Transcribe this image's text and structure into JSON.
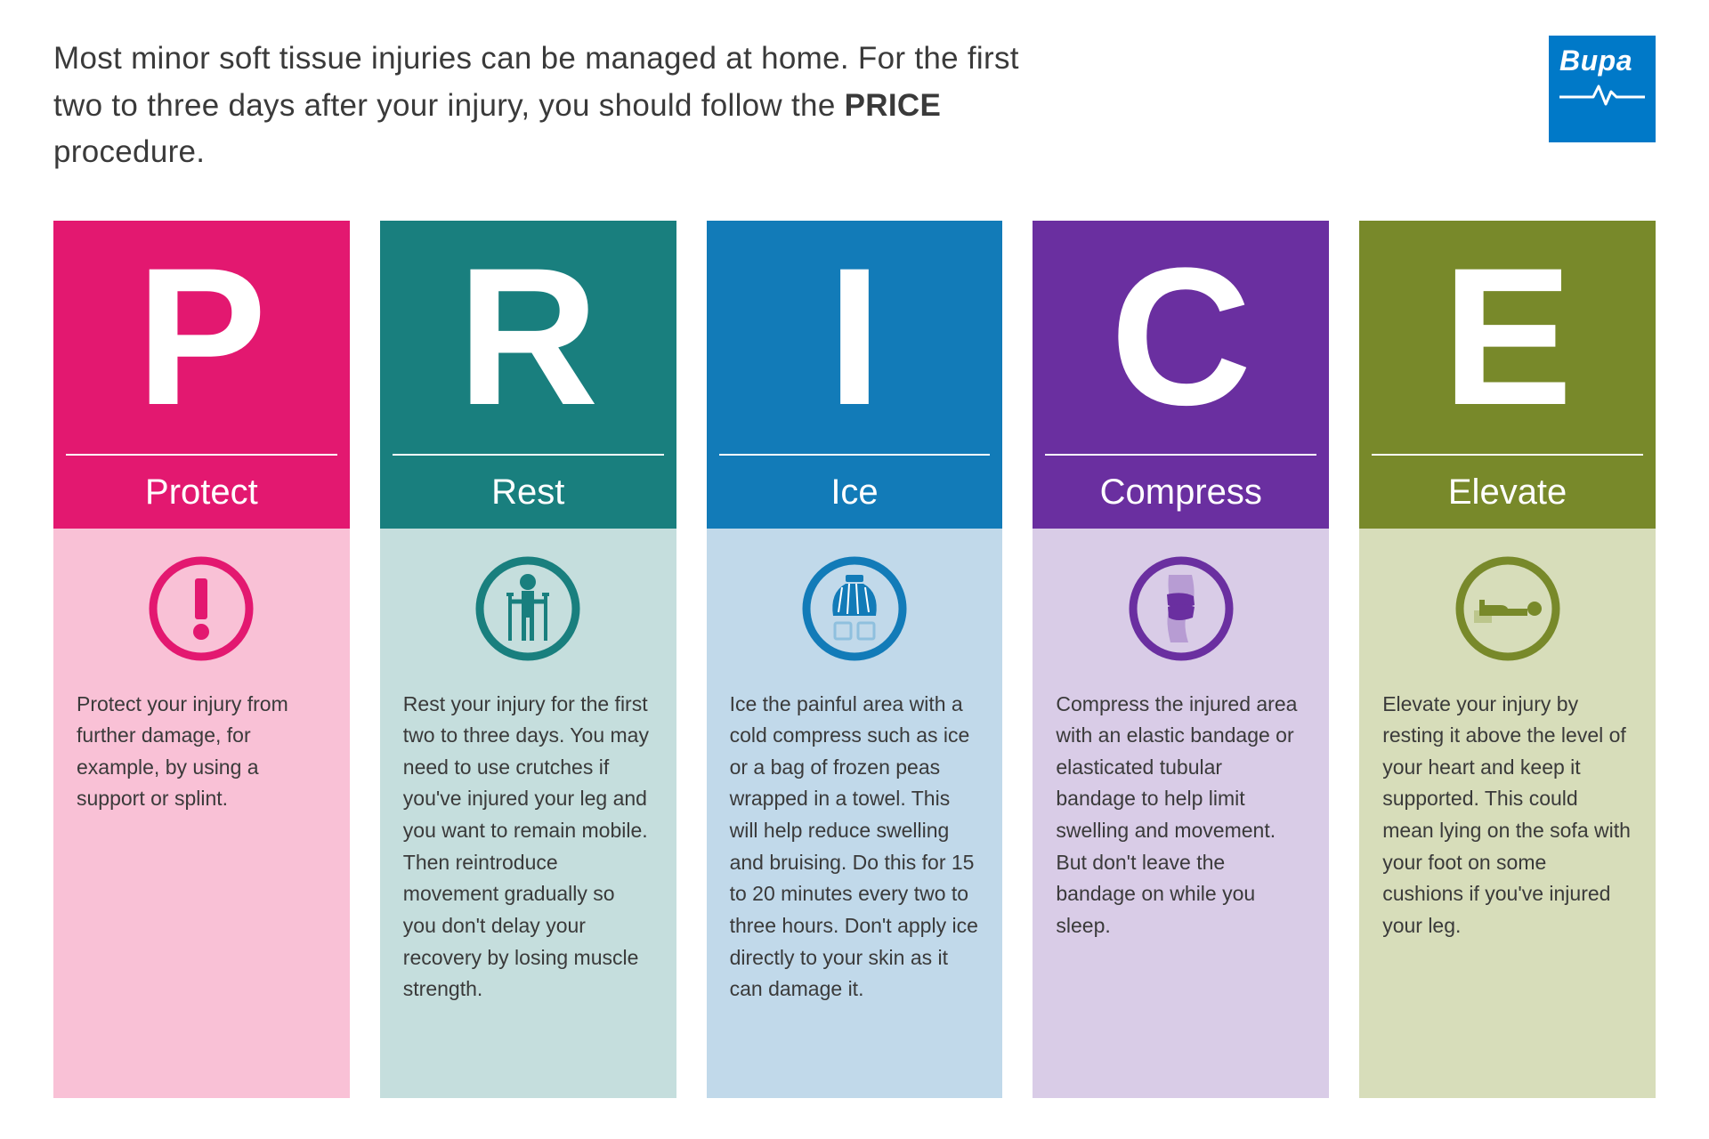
{
  "intro_pre": "Most minor soft tissue injuries can be managed at home. For the first two to three days after your injury, you should follow the ",
  "intro_bold": "PRICE",
  "intro_post": " procedure.",
  "logo_text": "Bupa",
  "colors": {
    "logo_bg": "#0079c8",
    "text": "#3a3a3a"
  },
  "columns": [
    {
      "letter": "P",
      "title": "Protect",
      "desc": "Protect your injury from further damage, for example, by using a support or splint.",
      "header_bg": "#e31870",
      "body_bg": "#f9c1d6",
      "icon": "exclaim",
      "icon_color": "#e31870"
    },
    {
      "letter": "R",
      "title": "Rest",
      "desc": "Rest your injury for the first two to three days. You may need to use crutches if you've injured your leg and you want to remain mobile. Then reintroduce movement gradually so you don't delay your recovery by losing muscle strength.",
      "header_bg": "#197f7e",
      "body_bg": "#c5dedd",
      "icon": "crutches",
      "icon_color": "#197f7e"
    },
    {
      "letter": "I",
      "title": "Ice",
      "desc": "Ice the painful area with a cold compress such as ice or a bag of frozen peas wrapped in a towel. This will help reduce swelling and bruising. Do this for 15 to 20 minutes every two to three hours. Don't apply ice directly to your skin as it can damage it.",
      "header_bg": "#127bb8",
      "body_bg": "#c1d9ea",
      "icon": "icebag",
      "icon_color": "#127bb8",
      "icon_light": "#8fc0de"
    },
    {
      "letter": "C",
      "title": "Compress",
      "desc": "Compress the injured area with an elastic bandage or elasticated tubular bandage to help limit swelling and movement. But don't leave the bandage on while you sleep.",
      "header_bg": "#6a2fa0",
      "body_bg": "#d9cce7",
      "icon": "bandage",
      "icon_color": "#6a2fa0",
      "icon_light": "#b79cd3"
    },
    {
      "letter": "E",
      "title": "Elevate",
      "desc": "Elevate your injury by resting it above the level of your heart and keep it supported. This could mean lying on the sofa with your foot on some cushions if you've injured your leg.",
      "header_bg": "#78892a",
      "body_bg": "#d7ddba",
      "icon": "elevate",
      "icon_color": "#78892a",
      "icon_light": "#bcc68c"
    }
  ]
}
